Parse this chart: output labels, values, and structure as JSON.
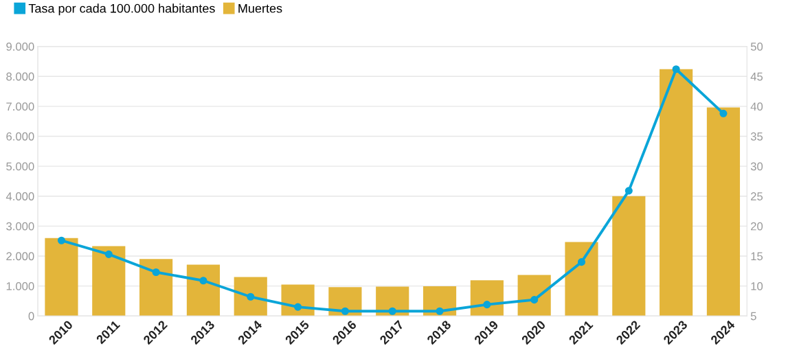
{
  "chart_data": {
    "type": "bar",
    "categories": [
      "2010",
      "2011",
      "2012",
      "2013",
      "2014",
      "2015",
      "2016",
      "2017",
      "2018",
      "2019",
      "2020",
      "2021",
      "2022",
      "2023",
      "2024"
    ],
    "series": [
      {
        "name": "Tasa por cada 100.000 habitantes",
        "type": "line",
        "axis": "y2",
        "color": "#0aa5d8",
        "marker": "circle",
        "values": [
          17.6,
          15.3,
          12.3,
          10.9,
          8.2,
          6.5,
          5.8,
          5.8,
          5.8,
          6.9,
          7.7,
          14.0,
          25.9,
          46.2,
          38.8
        ]
      },
      {
        "name": "Muertes",
        "color": "#e3b53a",
        "values": [
          2600,
          2330,
          1900,
          1710,
          1300,
          1050,
          960,
          980,
          990,
          1190,
          1370,
          2470,
          4000,
          8240,
          6960
        ]
      }
    ],
    "ylim": [
      0,
      9000
    ],
    "yticks": [
      {
        "value": 0,
        "label": "0"
      },
      {
        "value": 1000,
        "label": "1.000"
      },
      {
        "value": 2000,
        "label": "2.000"
      },
      {
        "value": 3000,
        "label": "3.000"
      },
      {
        "value": 4000,
        "label": "4.000"
      },
      {
        "value": 5000,
        "label": "5.000"
      },
      {
        "value": 6000,
        "label": "6.000"
      },
      {
        "value": 7000,
        "label": "7.000"
      },
      {
        "value": 8000,
        "label": "8.000"
      },
      {
        "value": 9000,
        "label": "9.000"
      }
    ],
    "y2lim": [
      5,
      50
    ],
    "y2ticks": [
      5,
      10,
      15,
      20,
      25,
      30,
      35,
      40,
      45,
      50
    ],
    "grid": "y",
    "legend": "top left"
  }
}
